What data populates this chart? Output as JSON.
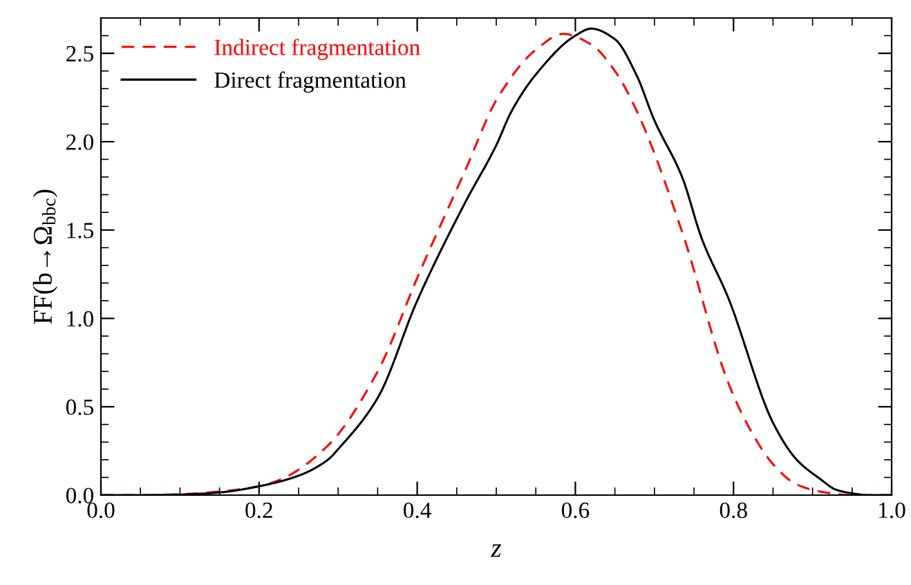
{
  "chart_data": {
    "type": "line",
    "xlabel": "z",
    "ylabel": "FF(b→Ω$_{bbc}$)",
    "xlim": [
      0,
      1
    ],
    "ylim": [
      0,
      2.7
    ],
    "xticks": [
      {
        "value": 0,
        "label": "0.0"
      },
      0.2,
      0.4,
      0.6,
      0.8,
      {
        "value": 1,
        "label": "1.0"
      }
    ],
    "yticks": [
      {
        "value": 0,
        "label": "0.0"
      },
      0.5,
      {
        "value": 1,
        "label": "1.0"
      },
      1.5,
      {
        "value": 2,
        "label": "2.0"
      },
      2.5
    ],
    "grid": false,
    "legend": "top left",
    "marker": "none",
    "series": [
      {
        "name": "Indirect fragmentation",
        "color": "#ff0000",
        "line_style": "dashed",
        "x": [
          0,
          0.05,
          0.1,
          0.15,
          0.2,
          0.228,
          0.287,
          0.35,
          0.402,
          0.46,
          0.502,
          0.55,
          0.585,
          0.62,
          0.65,
          0.677,
          0.735,
          0.793,
          0.82,
          0.851,
          0.88,
          0.91,
          0.95,
          1.0
        ],
        "values": [
          0,
          0,
          0.005,
          0.02,
          0.05,
          0.09,
          0.28,
          0.7,
          1.25,
          1.83,
          2.25,
          2.52,
          2.61,
          2.55,
          2.4,
          2.18,
          1.49,
          0.64,
          0.38,
          0.17,
          0.06,
          0.02,
          0,
          0
        ]
      },
      {
        "name": "Direct fragmentation",
        "color": "#000000",
        "line_style": "solid",
        "x": [
          0,
          0.05,
          0.1,
          0.15,
          0.2,
          0.25,
          0.287,
          0.3,
          0.35,
          0.4,
          0.46,
          0.5,
          0.519,
          0.55,
          0.6,
          0.62,
          0.65,
          0.677,
          0.7,
          0.735,
          0.76,
          0.793,
          0.851,
          0.88,
          0.91,
          0.93,
          0.95,
          0.97,
          1.0
        ],
        "values": [
          0,
          0,
          0.003,
          0.015,
          0.05,
          0.11,
          0.2,
          0.26,
          0.55,
          1.1,
          1.65,
          1.98,
          2.17,
          2.38,
          2.6,
          2.64,
          2.58,
          2.38,
          2.12,
          1.8,
          1.45,
          1.12,
          0.4,
          0.2,
          0.09,
          0.03,
          0.01,
          0,
          0
        ]
      }
    ]
  }
}
